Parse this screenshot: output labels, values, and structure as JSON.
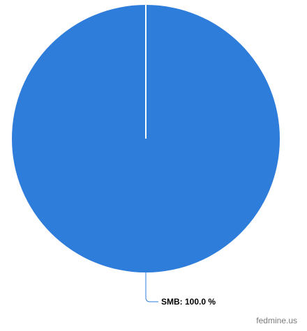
{
  "chart_data": {
    "type": "pie",
    "slices": [
      {
        "label": "SMB",
        "value": 100.0,
        "color": "#2e7ddb"
      }
    ],
    "label_format": "{label}: {value} %",
    "start_angle": "top",
    "legend": "none"
  },
  "credit": {
    "text": "fedmine.us"
  }
}
